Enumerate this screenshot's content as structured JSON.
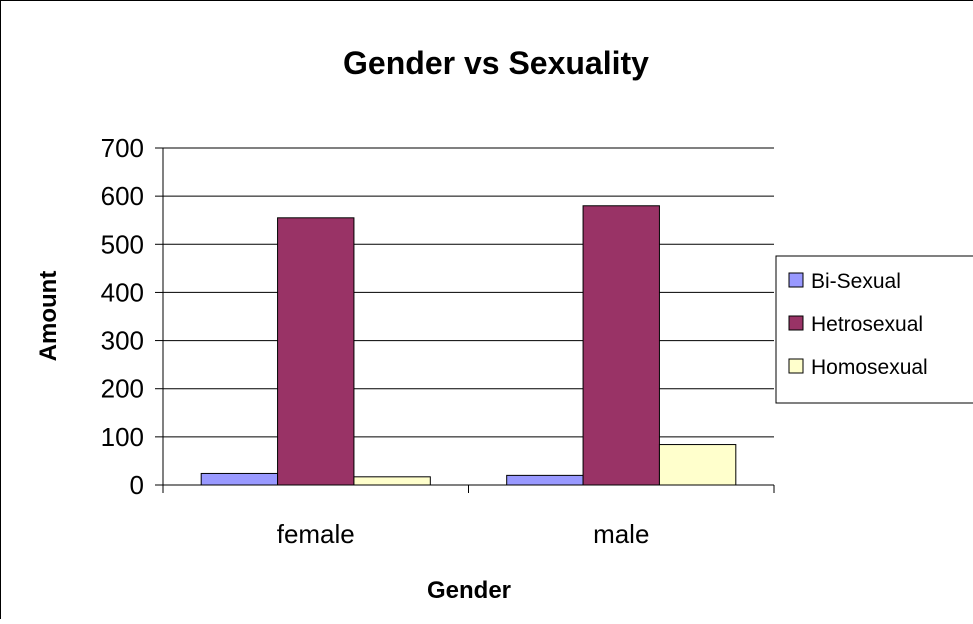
{
  "chart_data": {
    "type": "bar",
    "title": "Gender vs Sexuality",
    "xlabel": "Gender",
    "ylabel": "Amount",
    "categories": [
      "female",
      "male"
    ],
    "ylim": [
      0,
      700
    ],
    "yticks": [
      0,
      100,
      200,
      300,
      400,
      500,
      600,
      700
    ],
    "grid": true,
    "legend_position": "right",
    "series": [
      {
        "name": "Bi-Sexual",
        "color": "#9999FF",
        "values": [
          24,
          20
        ]
      },
      {
        "name": "Hetrosexual",
        "color": "#993366",
        "values": [
          555,
          580
        ]
      },
      {
        "name": "Homosexual",
        "color": "#FFFFCC",
        "values": [
          17,
          84
        ]
      }
    ]
  }
}
